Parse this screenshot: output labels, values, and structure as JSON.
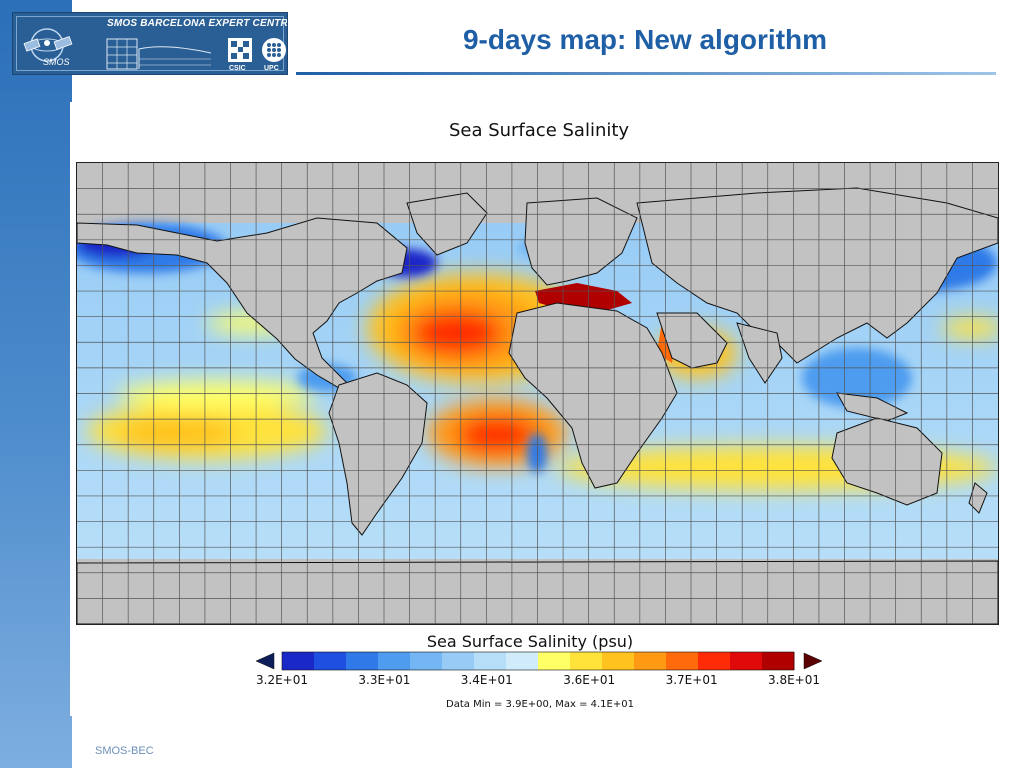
{
  "slide": {
    "title": "9-days map: New algorithm",
    "footer": "SMOS-BEC"
  },
  "logo": {
    "centre_name": "SMOS BARCELONA EXPERT CENTRE",
    "sat_label": "SMOS",
    "csic_label": "CSIC",
    "upc_label": "UPC",
    "colors": {
      "banner": "#2a5f95",
      "text": "#ffffff"
    }
  },
  "map": {
    "title": "Sea Surface Salinity",
    "projection": "equirectangular",
    "grid": true,
    "land_color": "#c0c0c0",
    "grid_color": "#555555"
  },
  "colorbar": {
    "title": "Sea Surface Salinity (psu)",
    "ticks": [
      "3.2E+01",
      "3.3E+01",
      "3.4E+01",
      "3.6E+01",
      "3.7E+01",
      "3.8E+01"
    ],
    "colors": [
      "#1a28c8",
      "#1f4fe0",
      "#2f7ae8",
      "#4e9cf0",
      "#74b6f4",
      "#98ccf6",
      "#b6def8",
      "#d0ecfa",
      "#ffff66",
      "#ffe23a",
      "#ffc21e",
      "#ff9a12",
      "#ff6a0a",
      "#ff2a06",
      "#e00a0a",
      "#b00000"
    ],
    "under_color": "#0d1e5a",
    "over_color": "#5a0000"
  },
  "data_range": "Data Min = 3.9E+00, Max = 4.1E+01"
}
